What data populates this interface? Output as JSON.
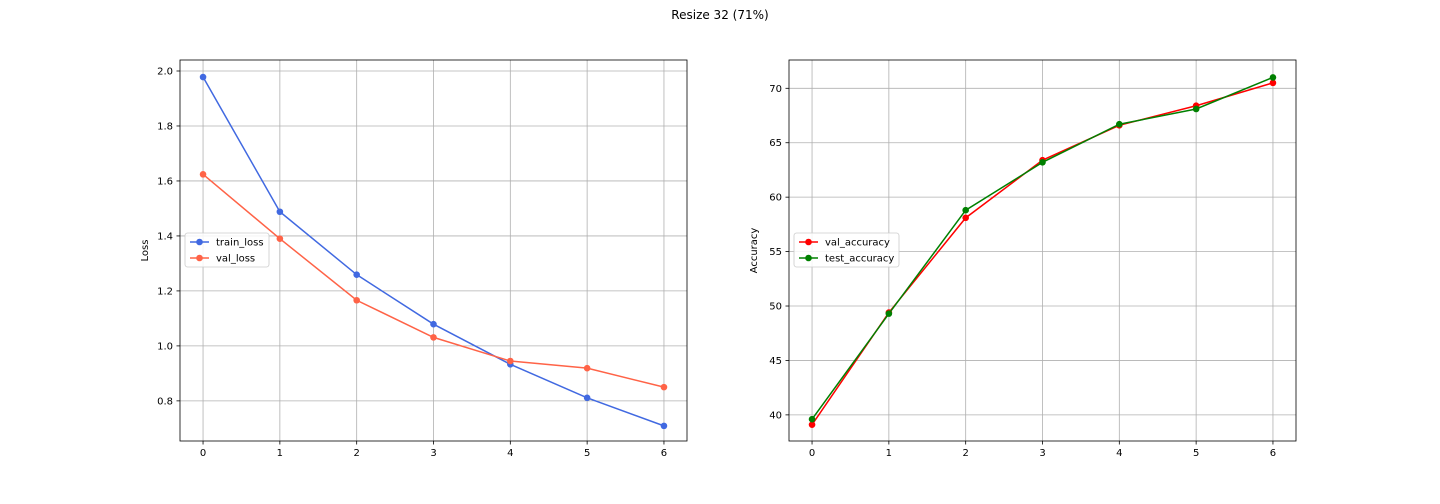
{
  "figure": {
    "title": "Resize 32 (71%)"
  },
  "chart_data": [
    {
      "type": "line",
      "title": "",
      "xlabel": "",
      "ylabel": "Loss",
      "x": [
        0,
        1,
        2,
        3,
        4,
        5,
        6
      ],
      "xticks": [
        "0",
        "1",
        "2",
        "3",
        "4",
        "5",
        "6"
      ],
      "yticks": [
        "0.8",
        "1.0",
        "1.2",
        "1.4",
        "1.6",
        "1.8",
        "2.0"
      ],
      "xlim": [
        -0.3,
        6.3
      ],
      "ylim": [
        0.654,
        2.04
      ],
      "grid": true,
      "legend_position": "center-left",
      "series": [
        {
          "name": "train_loss",
          "color": "#4169e1",
          "marker": "circle",
          "values": [
            1.978,
            1.488,
            1.259,
            1.079,
            0.933,
            0.811,
            0.709
          ]
        },
        {
          "name": "val_loss",
          "color": "#ff6347",
          "marker": "circle",
          "values": [
            1.624,
            1.39,
            1.166,
            1.031,
            0.945,
            0.919,
            0.85
          ]
        }
      ]
    },
    {
      "type": "line",
      "title": "",
      "xlabel": "",
      "ylabel": "Accuracy",
      "x": [
        0,
        1,
        2,
        3,
        4,
        5,
        6
      ],
      "xticks": [
        "0",
        "1",
        "2",
        "3",
        "4",
        "5",
        "6"
      ],
      "yticks": [
        "40",
        "45",
        "50",
        "55",
        "60",
        "65",
        "70"
      ],
      "xlim": [
        -0.3,
        6.3
      ],
      "ylim": [
        37.6,
        72.6
      ],
      "grid": true,
      "legend_position": "center-left",
      "series": [
        {
          "name": "val_accuracy",
          "color": "#ff0000",
          "marker": "circle",
          "values": [
            39.1,
            49.4,
            58.1,
            63.4,
            66.6,
            68.4,
            70.5
          ]
        },
        {
          "name": "test_accuracy",
          "color": "#008000",
          "marker": "circle",
          "values": [
            39.6,
            49.3,
            58.8,
            63.2,
            66.7,
            68.1,
            71.0
          ]
        }
      ]
    }
  ]
}
